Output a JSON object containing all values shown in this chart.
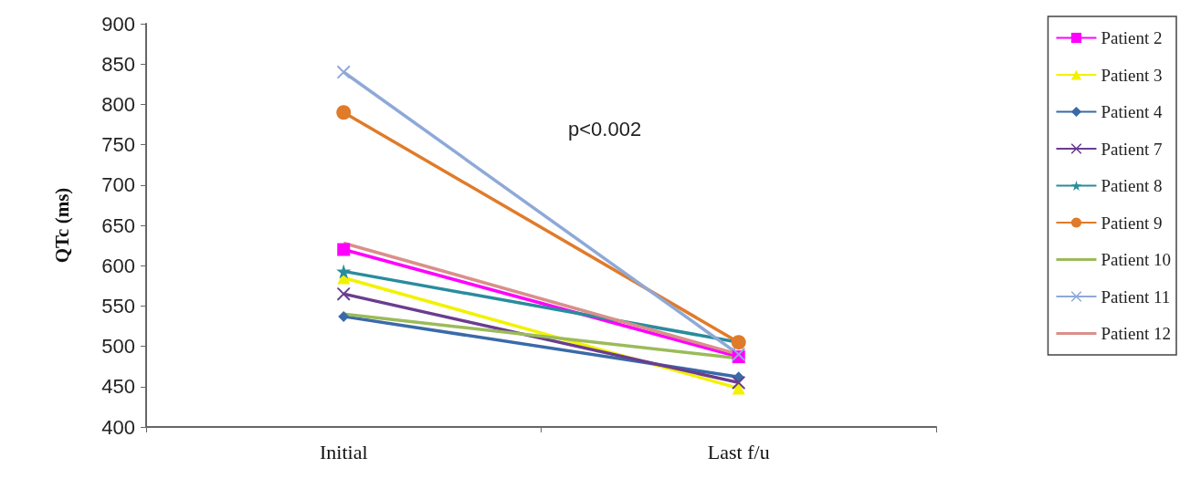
{
  "chart_data": {
    "type": "line",
    "ylabel": "QTc (ms)",
    "categories": [
      "Initial",
      "Last f/u"
    ],
    "ylim": [
      400,
      900
    ],
    "yticks": [
      400,
      450,
      500,
      550,
      600,
      650,
      700,
      750,
      800,
      850,
      900
    ],
    "grid": false,
    "legend": "right",
    "annotations": [
      "p<0.002"
    ],
    "series": [
      {
        "name": "Patient 2",
        "color": "#ff00ff",
        "marker": "square",
        "values": [
          620,
          487
        ]
      },
      {
        "name": "Patient 3",
        "color": "#f2f200",
        "marker": "triangle",
        "values": [
          585,
          448
        ]
      },
      {
        "name": "Patient 4",
        "color": "#3a6aa8",
        "marker": "diamond",
        "values": [
          537,
          462
        ]
      },
      {
        "name": "Patient 7",
        "color": "#6a3d8f",
        "marker": "cross",
        "values": [
          565,
          455
        ]
      },
      {
        "name": "Patient 8",
        "color": "#2a8c9c",
        "marker": "star",
        "values": [
          593,
          505
        ]
      },
      {
        "name": "Patient 9",
        "color": "#e07b2a",
        "marker": "circle",
        "values": [
          790,
          505
        ]
      },
      {
        "name": "Patient 10",
        "color": "#9bbb59",
        "marker": "none",
        "values": [
          540,
          485
        ]
      },
      {
        "name": "Patient 11",
        "color": "#8ea9d8",
        "marker": "cross",
        "values": [
          840,
          490
        ]
      },
      {
        "name": "Patient 12",
        "color": "#d9908a",
        "marker": "none",
        "values": [
          628,
          490
        ]
      }
    ]
  }
}
